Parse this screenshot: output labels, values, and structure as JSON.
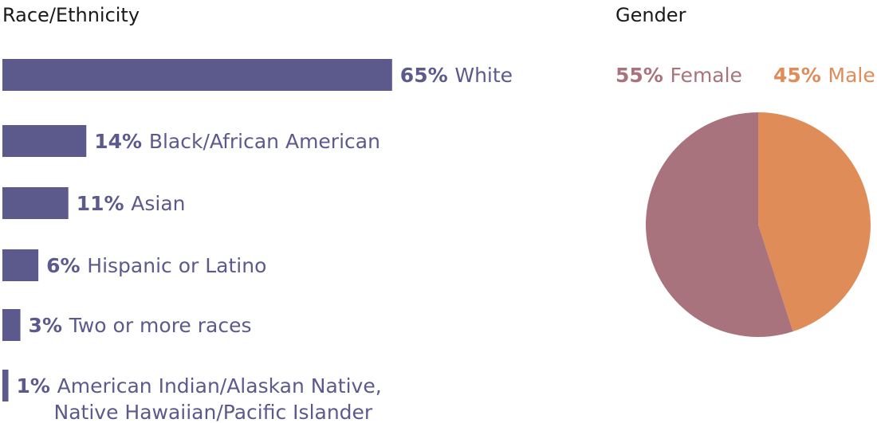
{
  "headings": {
    "race": "Race/Ethnicity",
    "gender": "Gender"
  },
  "chart_data": [
    {
      "type": "bar",
      "orientation": "horizontal",
      "title": "Race/Ethnicity",
      "unit": "%",
      "categories": [
        "White",
        "Black/African American",
        "Asian",
        "Hispanic or Latino",
        "Two or more races",
        [
          "American Indian/Alaskan Native,",
          "Native Hawaiian/Pacific Islander"
        ]
      ],
      "values": [
        65,
        14,
        11,
        6,
        3,
        1
      ],
      "value_labels": [
        "65%",
        "14%",
        "11%",
        "6%",
        "3%",
        "1%"
      ],
      "color": "#5c5a8c",
      "grid": false
    },
    {
      "type": "pie",
      "title": "Gender",
      "slices": [
        {
          "label": "Female",
          "value": 55,
          "value_label": "55%",
          "color": "#a8737d"
        },
        {
          "label": "Male",
          "value": 45,
          "value_label": "45%",
          "color": "#df8c59"
        }
      ],
      "legend_placement": "top"
    }
  ]
}
